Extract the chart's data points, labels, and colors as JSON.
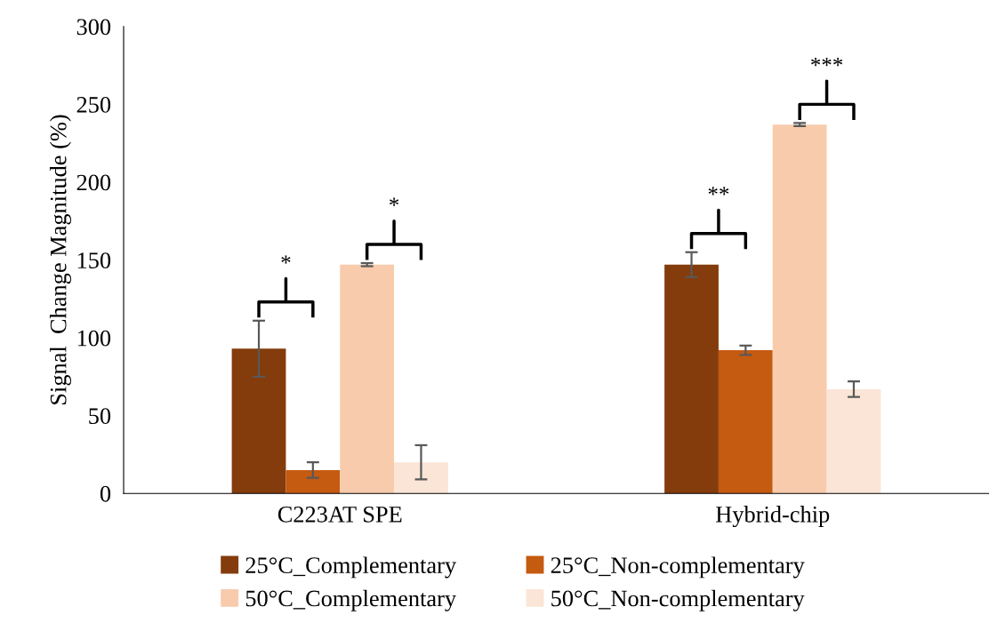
{
  "chart_data": {
    "type": "bar",
    "ylabel": "Signal  Change Magnitude (%)",
    "categories": [
      "C223AT SPE",
      "Hybrid-chip"
    ],
    "series": [
      {
        "name": "25°C_Complementary",
        "color": "#843c0c",
        "values": [
          93,
          147
        ],
        "errors": [
          18,
          8
        ]
      },
      {
        "name": "25°C_Non-complementary",
        "color": "#c55a11",
        "values": [
          15,
          92
        ],
        "errors": [
          5,
          3
        ]
      },
      {
        "name": "50°C_Complementary",
        "color": "#f8cbad",
        "values": [
          147,
          237
        ],
        "errors": [
          1,
          1
        ]
      },
      {
        "name": "50°C_Non-complementary",
        "color": "#fbe5d6",
        "values": [
          20,
          67
        ],
        "errors": [
          11,
          5
        ]
      }
    ],
    "ylim": [
      0,
      300
    ],
    "yticks": [
      0,
      50,
      100,
      150,
      200,
      250,
      300
    ],
    "grid": false,
    "legend": "bottom",
    "annotations": [
      "*",
      "*",
      "**",
      "***"
    ]
  }
}
